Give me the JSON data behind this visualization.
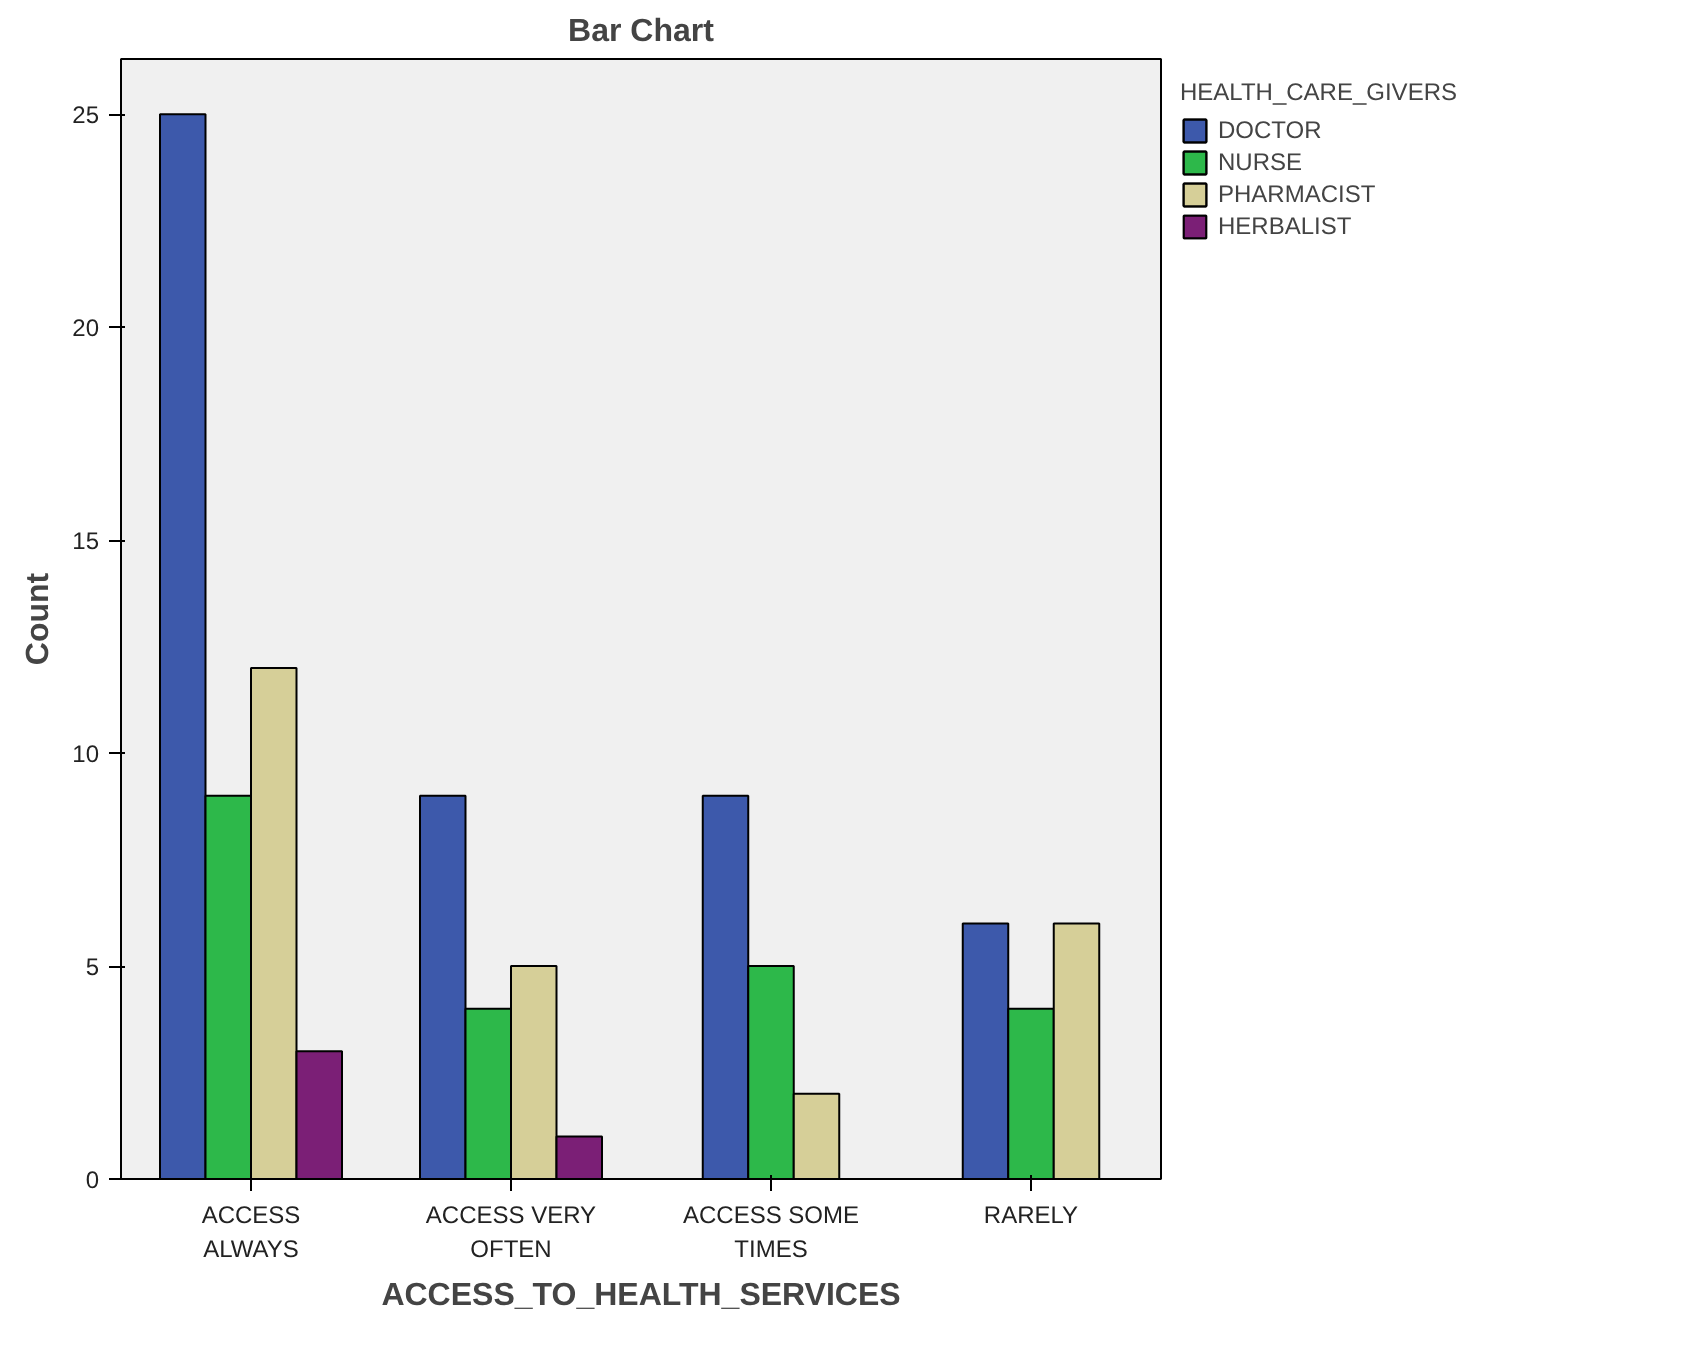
{
  "chart_data": {
    "type": "bar",
    "title": "Bar Chart",
    "xlabel": "ACCESS_TO_HEALTH_SERVICES",
    "ylabel": "Count",
    "legend_title": "HEALTH_CARE_GIVERS",
    "categories": [
      "ACCESS ALWAYS",
      "ACCESS VERY OFTEN",
      "ACCESS SOME TIMES",
      "RARELY"
    ],
    "series": [
      {
        "name": "DOCTOR",
        "color": "#3d59ab",
        "values": [
          25,
          9,
          9,
          6
        ]
      },
      {
        "name": "NURSE",
        "color": "#2db84a",
        "values": [
          9,
          4,
          5,
          4
        ]
      },
      {
        "name": "PHARMACIST",
        "color": "#d6cf98",
        "values": [
          12,
          5,
          2,
          6
        ]
      },
      {
        "name": "HERBALIST",
        "color": "#7b1f76",
        "values": [
          3,
          1,
          null,
          null
        ]
      }
    ],
    "ylim": [
      0,
      26.3
    ],
    "yticks": [
      0,
      5,
      10,
      15,
      20,
      25
    ],
    "grid": false,
    "legend": "right"
  }
}
